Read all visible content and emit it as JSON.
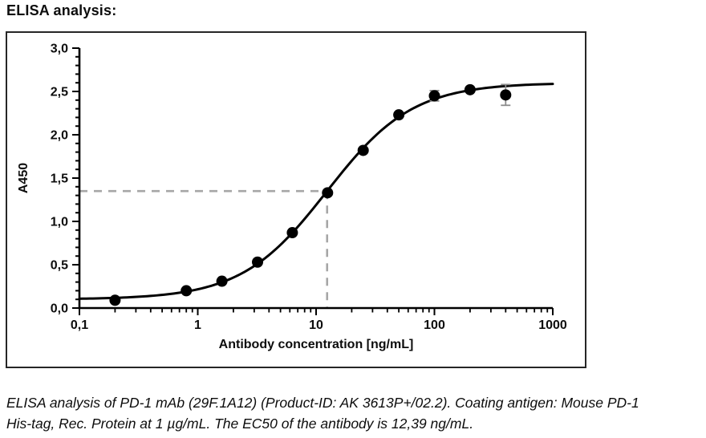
{
  "page_title": "ELISA analysis:",
  "caption": {
    "line1": "ELISA analysis of PD-1 mAb (29F.1A12) (Product-ID: AK 3613P+/02.2). Coating antigen: Mouse PD-1",
    "line2": "His-tag, Rec. Protein at 1 µg/mL. The EC50 of the antibody is 12,39 ng/mL."
  },
  "chart_data": {
    "type": "scatter",
    "title": "",
    "xlabel": "Antibody concentration [ng/mL]",
    "ylabel": "A450",
    "x_scale": "log",
    "xlim": [
      0.1,
      1000
    ],
    "ylim": [
      0,
      3
    ],
    "grid": false,
    "legend": "none",
    "x_major_ticks": [
      0.1,
      1,
      10,
      100,
      1000
    ],
    "x_tick_labels": [
      "0,1",
      "1",
      "10",
      "100",
      "1000"
    ],
    "y_major_ticks": [
      0,
      0.5,
      1.0,
      1.5,
      2.0,
      2.5,
      3.0
    ],
    "y_tick_labels": [
      "0,0",
      "0,5",
      "1,0",
      "1,5",
      "2,0",
      "2,5",
      "3,0"
    ],
    "y_minor_step": 0.1,
    "points": [
      {
        "x": 0.2,
        "y": 0.09
      },
      {
        "x": 0.8,
        "y": 0.2
      },
      {
        "x": 1.6,
        "y": 0.31
      },
      {
        "x": 3.2,
        "y": 0.53
      },
      {
        "x": 6.3,
        "y": 0.87
      },
      {
        "x": 12.5,
        "y": 1.33
      },
      {
        "x": 25,
        "y": 1.82
      },
      {
        "x": 50,
        "y": 2.23
      },
      {
        "x": 100,
        "y": 2.45,
        "err": 0.06
      },
      {
        "x": 200,
        "y": 2.52
      },
      {
        "x": 400,
        "y": 2.46,
        "err": 0.12
      }
    ],
    "fit_curve": {
      "model": "4PL",
      "bottom": 0.1,
      "top": 2.6,
      "ec50": 12.39,
      "hill": 1.2
    },
    "ec50_guide": {
      "x": 12.39,
      "y": 1.35
    },
    "colors": {
      "series": "#000000",
      "axis": "#000000",
      "guide_dash": "#a6a6a6",
      "error_bar": "#8c8c8c",
      "frame": "#262626"
    }
  }
}
